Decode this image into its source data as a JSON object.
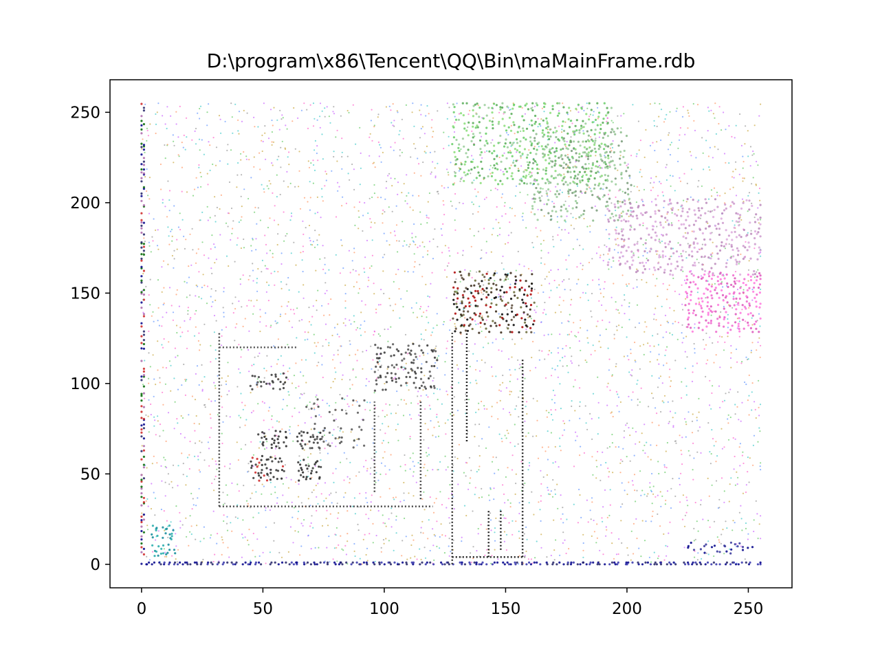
{
  "chart_data": {
    "type": "scatter",
    "title": "D:\\program\\x86\\Tencent\\QQ\\Bin\\maMainFrame.rdb",
    "xlabel": "",
    "ylabel": "",
    "xlim": [
      -13,
      268
    ],
    "ylim": [
      -13,
      268
    ],
    "grid": false,
    "legend": "none",
    "x_ticks": [
      0,
      50,
      100,
      150,
      200,
      250
    ],
    "y_ticks": [
      0,
      50,
      100,
      150,
      200,
      250
    ],
    "x_tick_labels": [
      "0",
      "50",
      "100",
      "150",
      "200",
      "250"
    ],
    "y_tick_labels": [
      "0",
      "50",
      "100",
      "150",
      "200",
      "250"
    ],
    "data_description": "byte-pair scatter: x = byte value, y = next byte value, range 0-255",
    "regions": [
      {
        "name": "background-noise",
        "x": [
          0,
          255
        ],
        "y": [
          0,
          255
        ],
        "density": 0.22,
        "colors": [
          "#ff66cc",
          "#66cc66",
          "#6699ff",
          "#ccaa44",
          "#44cccc",
          "#cc66ff",
          "#999999",
          "#ff9966"
        ]
      },
      {
        "name": "green-cluster-top",
        "x": [
          128,
          192
        ],
        "y": [
          210,
          255
        ],
        "density": 0.55,
        "colors": [
          "#66cc66",
          "#88dd77",
          "#55aa55",
          "#99cc99"
        ]
      },
      {
        "name": "green-cluster-mid",
        "x": [
          160,
          200
        ],
        "y": [
          190,
          240
        ],
        "density": 0.45,
        "colors": [
          "#88bb88",
          "#99cc99",
          "#779977"
        ]
      },
      {
        "name": "lilac-cluster",
        "x": [
          192,
          255
        ],
        "y": [
          160,
          200
        ],
        "density": 0.45,
        "colors": [
          "#cc99cc",
          "#bb88bb",
          "#ddaadd"
        ]
      },
      {
        "name": "pink-cluster",
        "x": [
          224,
          255
        ],
        "y": [
          128,
          160
        ],
        "density": 0.6,
        "colors": [
          "#ee66cc",
          "#ff77dd",
          "#dd55bb"
        ]
      },
      {
        "name": "dark-block-olive",
        "x": [
          128,
          160
        ],
        "y": [
          128,
          160
        ],
        "density": 0.7,
        "colors": [
          "#554433",
          "#332211",
          "#aa0000",
          "#666633",
          "#000000"
        ]
      },
      {
        "name": "dark-block-a",
        "x": [
          48,
          58
        ],
        "y": [
          64,
          72
        ],
        "density": 0.9,
        "colors": [
          "#333333",
          "#222222"
        ]
      },
      {
        "name": "dark-block-b",
        "x": [
          45,
          58
        ],
        "y": [
          46,
          58
        ],
        "density": 0.9,
        "colors": [
          "#333333",
          "#222222",
          "#cc2222"
        ]
      },
      {
        "name": "dark-block-c",
        "x": [
          64,
          72
        ],
        "y": [
          46,
          56
        ],
        "density": 0.9,
        "colors": [
          "#333333",
          "#222222"
        ]
      },
      {
        "name": "dark-block-d",
        "x": [
          64,
          72
        ],
        "y": [
          64,
          72
        ],
        "density": 0.85,
        "colors": [
          "#333333",
          "#222222"
        ]
      },
      {
        "name": "dark-block-e",
        "x": [
          96,
          120
        ],
        "y": [
          96,
          120
        ],
        "density": 0.55,
        "colors": [
          "#444444",
          "#333333",
          "#555555"
        ]
      },
      {
        "name": "dark-block-f",
        "x": [
          44,
          58
        ],
        "y": [
          96,
          104
        ],
        "density": 0.6,
        "colors": [
          "#444444",
          "#333333"
        ]
      },
      {
        "name": "dark-sparse-mid",
        "x": [
          64,
          90
        ],
        "y": [
          64,
          90
        ],
        "density": 0.25,
        "colors": [
          "#444444",
          "#555555"
        ]
      },
      {
        "name": "teal-cluster",
        "x": [
          4,
          12
        ],
        "y": [
          4,
          20
        ],
        "density": 0.8,
        "colors": [
          "#118899",
          "#22aaaa"
        ]
      },
      {
        "name": "navy-bottom-row",
        "x": [
          0,
          255
        ],
        "y": [
          0,
          1
        ],
        "density": 0.9,
        "colors": [
          "#000088",
          "#222266",
          "#3333aa"
        ]
      },
      {
        "name": "navy-left-column",
        "x": [
          0,
          1
        ],
        "y": [
          0,
          255
        ],
        "density": 0.5,
        "colors": [
          "#000088",
          "#222266",
          "#cc2222",
          "#006600",
          "#aa66aa"
        ]
      },
      {
        "name": "navy-right-dots",
        "x": [
          224,
          250
        ],
        "y": [
          6,
          10
        ],
        "density": 0.5,
        "colors": [
          "#000088",
          "#333399"
        ]
      }
    ],
    "line_segments": [
      {
        "name": "frame-dark-left",
        "x": [
          32,
          32
        ],
        "y": [
          32,
          128
        ],
        "color": "#444444"
      },
      {
        "name": "frame-dark-bottom",
        "x": [
          32,
          120
        ],
        "y": [
          32,
          32
        ],
        "color": "#444444"
      },
      {
        "name": "frame-dark-top",
        "x": [
          32,
          64
        ],
        "y": [
          120,
          120
        ],
        "color": "#555555"
      },
      {
        "name": "frame-vert-128",
        "x": [
          128,
          128
        ],
        "y": [
          0,
          128
        ],
        "color": "#333333"
      },
      {
        "name": "frame-vert-134",
        "x": [
          134,
          134
        ],
        "y": [
          68,
          128
        ],
        "color": "#222222"
      },
      {
        "name": "frame-vert-157",
        "x": [
          157,
          157
        ],
        "y": [
          4,
          114
        ],
        "color": "#222222"
      },
      {
        "name": "frame-bottom-128",
        "x": [
          128,
          158
        ],
        "y": [
          4,
          4
        ],
        "color": "#222222"
      },
      {
        "name": "frame-vert-143",
        "x": [
          143,
          143
        ],
        "y": [
          4,
          30
        ],
        "color": "#222222"
      },
      {
        "name": "frame-vert-148",
        "x": [
          148,
          148
        ],
        "y": [
          8,
          30
        ],
        "color": "#222222"
      },
      {
        "name": "frame-vert-115",
        "x": [
          115,
          115
        ],
        "y": [
          36,
          90
        ],
        "color": "#444444"
      },
      {
        "name": "frame-vert-96",
        "x": [
          96,
          96
        ],
        "y": [
          40,
          90
        ],
        "color": "#444444"
      }
    ]
  }
}
